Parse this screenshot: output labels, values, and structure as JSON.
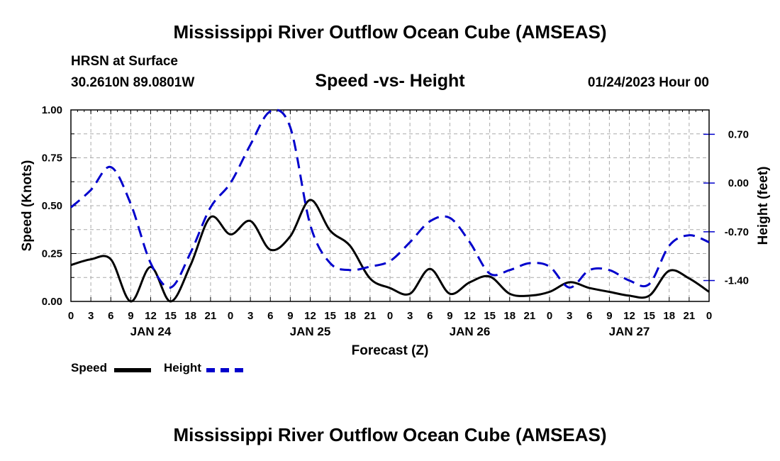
{
  "header": {
    "title": "Mississippi River Outflow Ocean Cube (AMSEAS)",
    "station": "HRSN at Surface",
    "coords": "30.2610N  89.0801W",
    "subtitle": "Speed -vs- Height",
    "datetime": "01/24/2023 Hour 00"
  },
  "footer": {
    "title": "Mississippi River Outflow Ocean Cube (AMSEAS)"
  },
  "legend": {
    "speed": "Speed",
    "height": "Height"
  },
  "colors": {
    "speed": "#000000",
    "height": "#0000cc",
    "grid": "#aaaaaa"
  },
  "chart_data": {
    "type": "line",
    "xlabel": "Forecast (Z)",
    "ylabel_left": "Speed (Knots)",
    "ylabel_right": "Height (feet)",
    "x_range_hours": [
      0,
      96
    ],
    "x_tick_labels": [
      "0",
      "3",
      "6",
      "9",
      "12",
      "15",
      "18",
      "21",
      "0",
      "3",
      "6",
      "9",
      "12",
      "15",
      "18",
      "21",
      "0",
      "3",
      "6",
      "9",
      "12",
      "15",
      "18",
      "21",
      "0",
      "3",
      "6",
      "9",
      "12",
      "15",
      "18",
      "21",
      "0"
    ],
    "day_labels": [
      {
        "label": "JAN 24",
        "hour": 12
      },
      {
        "label": "JAN 25",
        "hour": 36
      },
      {
        "label": "JAN 26",
        "hour": 60
      },
      {
        "label": "JAN 27",
        "hour": 84
      }
    ],
    "left_axis": {
      "range": [
        0,
        1
      ],
      "ticks": [
        "0.00",
        "0.25",
        "0.50",
        "0.75",
        "1.00"
      ]
    },
    "right_axis": {
      "range": [
        -1.7,
        1.05
      ],
      "ticks": [
        "-1.40",
        "-0.70",
        "0.00",
        "0.70"
      ],
      "tick_values": [
        -1.4,
        -0.7,
        0.0,
        0.7
      ]
    },
    "grid": true,
    "series": [
      {
        "name": "Speed",
        "axis": "left",
        "style": "solid",
        "x": [
          0,
          3,
          6,
          9,
          12,
          15,
          18,
          21,
          24,
          27,
          30,
          33,
          36,
          39,
          42,
          45,
          48,
          51,
          54,
          57,
          60,
          63,
          66,
          69,
          72,
          75,
          78,
          81,
          84,
          87,
          90,
          93,
          96
        ],
        "values": [
          0.19,
          0.22,
          0.22,
          0.0,
          0.18,
          0.0,
          0.19,
          0.44,
          0.35,
          0.42,
          0.27,
          0.34,
          0.53,
          0.37,
          0.29,
          0.12,
          0.07,
          0.04,
          0.17,
          0.04,
          0.1,
          0.13,
          0.04,
          0.03,
          0.05,
          0.1,
          0.07,
          0.05,
          0.03,
          0.03,
          0.16,
          0.12,
          0.05
        ]
      },
      {
        "name": "Height",
        "axis": "right",
        "style": "dashed",
        "x": [
          0,
          3,
          6,
          9,
          12,
          15,
          18,
          21,
          24,
          27,
          30,
          33,
          36,
          39,
          42,
          45,
          48,
          51,
          54,
          57,
          60,
          63,
          66,
          69,
          72,
          75,
          78,
          81,
          84,
          87,
          90,
          93,
          96
        ],
        "values": [
          -0.35,
          -0.1,
          0.23,
          -0.3,
          -1.15,
          -1.5,
          -1.0,
          -0.35,
          0.0,
          0.55,
          1.03,
          0.8,
          -0.6,
          -1.15,
          -1.25,
          -1.2,
          -1.12,
          -0.85,
          -0.55,
          -0.5,
          -0.85,
          -1.3,
          -1.25,
          -1.15,
          -1.2,
          -1.5,
          -1.25,
          -1.25,
          -1.4,
          -1.45,
          -0.9,
          -0.75,
          -0.85
        ]
      }
    ]
  }
}
